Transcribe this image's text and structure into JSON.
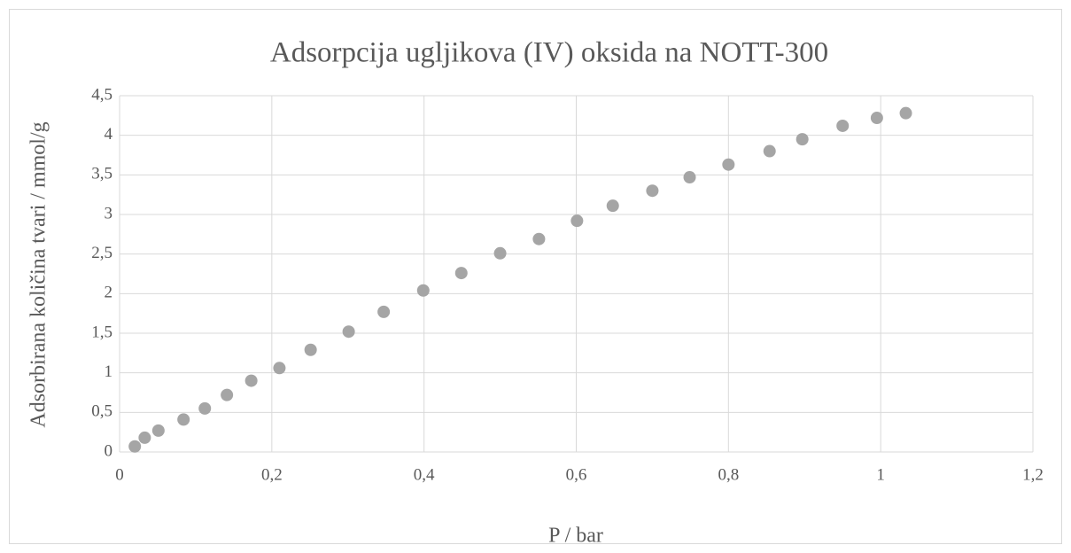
{
  "chart_data": {
    "type": "scatter",
    "title": "Adsorpcija ugljikova (IV) oksida na NOTT-300",
    "x_label": "P / bar",
    "y_label": "Adsorbirana količina tvari  / mmol/g",
    "series": [
      {
        "name": "NOTT-300",
        "color": "#a5a5a5",
        "x": [
          0.02,
          0.033,
          0.051,
          0.084,
          0.112,
          0.141,
          0.173,
          0.21,
          0.251,
          0.301,
          0.347,
          0.399,
          0.449,
          0.5,
          0.551,
          0.601,
          0.648,
          0.7,
          0.749,
          0.8,
          0.854,
          0.897,
          0.95,
          0.995,
          1.033
        ],
        "values": [
          0.07,
          0.18,
          0.27,
          0.41,
          0.55,
          0.72,
          0.9,
          1.06,
          1.29,
          1.52,
          1.77,
          2.04,
          2.26,
          2.51,
          2.69,
          2.92,
          3.11,
          3.3,
          3.47,
          3.63,
          3.8,
          3.95,
          4.12,
          4.22,
          4.28
        ]
      }
    ],
    "xlim": [
      0,
      1.2
    ],
    "xticks": [
      0,
      {
        "value": 0.2,
        "label": "0,2"
      },
      {
        "value": 0.4,
        "label": "0,4"
      },
      {
        "value": 0.6,
        "label": "0,6"
      },
      {
        "value": 0.8,
        "label": "0,8"
      },
      1,
      {
        "value": 1.2,
        "label": "1,2"
      }
    ],
    "ylim": [
      0,
      4.5
    ],
    "yticks": [
      0,
      {
        "value": 0.5,
        "label": "0,5"
      },
      1,
      {
        "value": 1.5,
        "label": "1,5"
      },
      2,
      {
        "value": 2.5,
        "label": "2,5"
      },
      3,
      {
        "value": 3.5,
        "label": "3,5"
      },
      4,
      {
        "value": 4.5,
        "label": "4,5"
      }
    ],
    "grid": true
  }
}
